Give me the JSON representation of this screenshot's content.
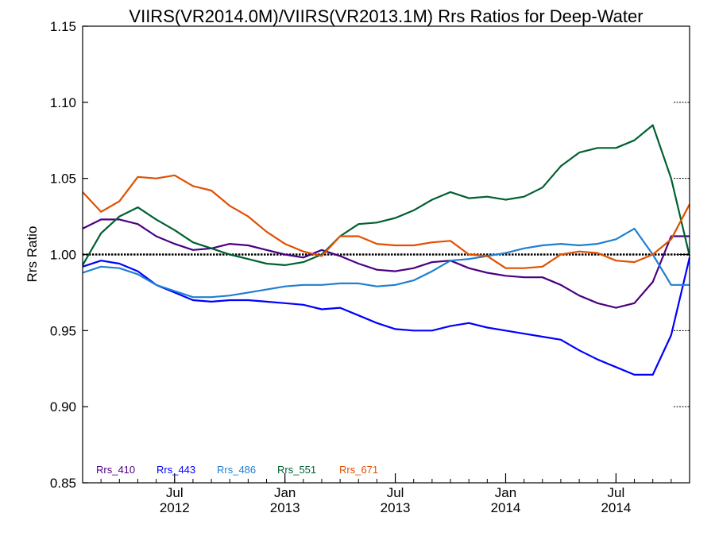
{
  "chart_data": {
    "type": "line",
    "title": "VIIRS(VR2014.0M)/VIIRS(VR2013.1M)  Rrs Ratios for Deep-Water",
    "xlabel": "",
    "ylabel": "Rrs Ratio",
    "ylim": [
      0.85,
      1.15
    ],
    "xlim": [
      "2012-02",
      "2014-11"
    ],
    "yticks": [
      {
        "value": 0.85,
        "label": "0.85"
      },
      {
        "value": 0.9,
        "label": "0.90"
      },
      {
        "value": 0.95,
        "label": "0.95"
      },
      {
        "value": 1.0,
        "label": "1.00"
      },
      {
        "value": 1.05,
        "label": "1.05"
      },
      {
        "value": 1.1,
        "label": "1.10"
      },
      {
        "value": 1.15,
        "label": "1.15"
      }
    ],
    "xticks": [
      {
        "date": "2012-07",
        "month": "Jul",
        "year": "2012"
      },
      {
        "date": "2013-01",
        "month": "Jan",
        "year": "2013"
      },
      {
        "date": "2013-07",
        "month": "Jul",
        "year": "2013"
      },
      {
        "date": "2014-01",
        "month": "Jan",
        "year": "2014"
      },
      {
        "date": "2014-07",
        "month": "Jul",
        "year": "2014"
      }
    ],
    "reference_line": {
      "y": 1.0,
      "style": "dotted",
      "color": "#000000"
    },
    "legend_position": "bottom-left",
    "x": [
      "2012-02",
      "2012-03",
      "2012-04",
      "2012-05",
      "2012-06",
      "2012-07",
      "2012-08",
      "2012-09",
      "2012-10",
      "2012-11",
      "2012-12",
      "2013-01",
      "2013-02",
      "2013-03",
      "2013-04",
      "2013-05",
      "2013-06",
      "2013-07",
      "2013-08",
      "2013-09",
      "2013-10",
      "2013-11",
      "2013-12",
      "2014-01",
      "2014-02",
      "2014-03",
      "2014-04",
      "2014-05",
      "2014-06",
      "2014-07",
      "2014-08",
      "2014-09",
      "2014-10",
      "2014-11"
    ],
    "series": [
      {
        "name": "Rrs_410",
        "color": "#4b0082",
        "values": [
          1.017,
          1.023,
          1.023,
          1.02,
          1.012,
          1.007,
          1.003,
          1.004,
          1.007,
          1.006,
          1.003,
          1.0,
          0.998,
          1.003,
          0.999,
          0.994,
          0.99,
          0.989,
          0.991,
          0.995,
          0.996,
          0.991,
          0.988,
          0.986,
          0.985,
          0.985,
          0.98,
          0.973,
          0.968,
          0.965,
          0.968,
          0.982,
          1.012,
          1.012
        ]
      },
      {
        "name": "Rrs_443",
        "color": "#0000ff",
        "values": [
          0.992,
          0.996,
          0.994,
          0.989,
          0.98,
          0.975,
          0.97,
          0.969,
          0.97,
          0.97,
          0.969,
          0.968,
          0.967,
          0.964,
          0.965,
          0.96,
          0.955,
          0.951,
          0.95,
          0.95,
          0.953,
          0.955,
          0.952,
          0.95,
          0.948,
          0.946,
          0.944,
          0.937,
          0.931,
          0.926,
          0.921,
          0.921,
          0.947,
          0.998
        ]
      },
      {
        "name": "Rrs_486",
        "color": "#1f7fd0",
        "values": [
          0.988,
          0.992,
          0.991,
          0.987,
          0.98,
          0.976,
          0.972,
          0.972,
          0.973,
          0.975,
          0.977,
          0.979,
          0.98,
          0.98,
          0.981,
          0.981,
          0.979,
          0.98,
          0.983,
          0.989,
          0.996,
          0.997,
          0.999,
          1.001,
          1.004,
          1.006,
          1.007,
          1.006,
          1.007,
          1.01,
          1.017,
          1.0,
          0.98,
          0.98
        ]
      },
      {
        "name": "Rrs_551",
        "color": "#006030",
        "values": [
          0.993,
          1.014,
          1.025,
          1.031,
          1.023,
          1.016,
          1.008,
          1.004,
          1.0,
          0.997,
          0.994,
          0.993,
          0.995,
          1.0,
          1.012,
          1.02,
          1.021,
          1.024,
          1.029,
          1.036,
          1.041,
          1.037,
          1.038,
          1.036,
          1.038,
          1.044,
          1.058,
          1.067,
          1.07,
          1.07,
          1.075,
          1.085,
          1.05,
          0.999
        ]
      },
      {
        "name": "Rrs_671",
        "color": "#e05000",
        "values": [
          1.041,
          1.028,
          1.035,
          1.051,
          1.05,
          1.052,
          1.045,
          1.042,
          1.032,
          1.025,
          1.015,
          1.007,
          1.002,
          0.999,
          1.012,
          1.012,
          1.007,
          1.006,
          1.006,
          1.008,
          1.009,
          1.0,
          0.999,
          0.991,
          0.991,
          0.992,
          1.0,
          1.002,
          1.001,
          0.996,
          0.995,
          1.0,
          1.01,
          1.033
        ]
      }
    ]
  }
}
